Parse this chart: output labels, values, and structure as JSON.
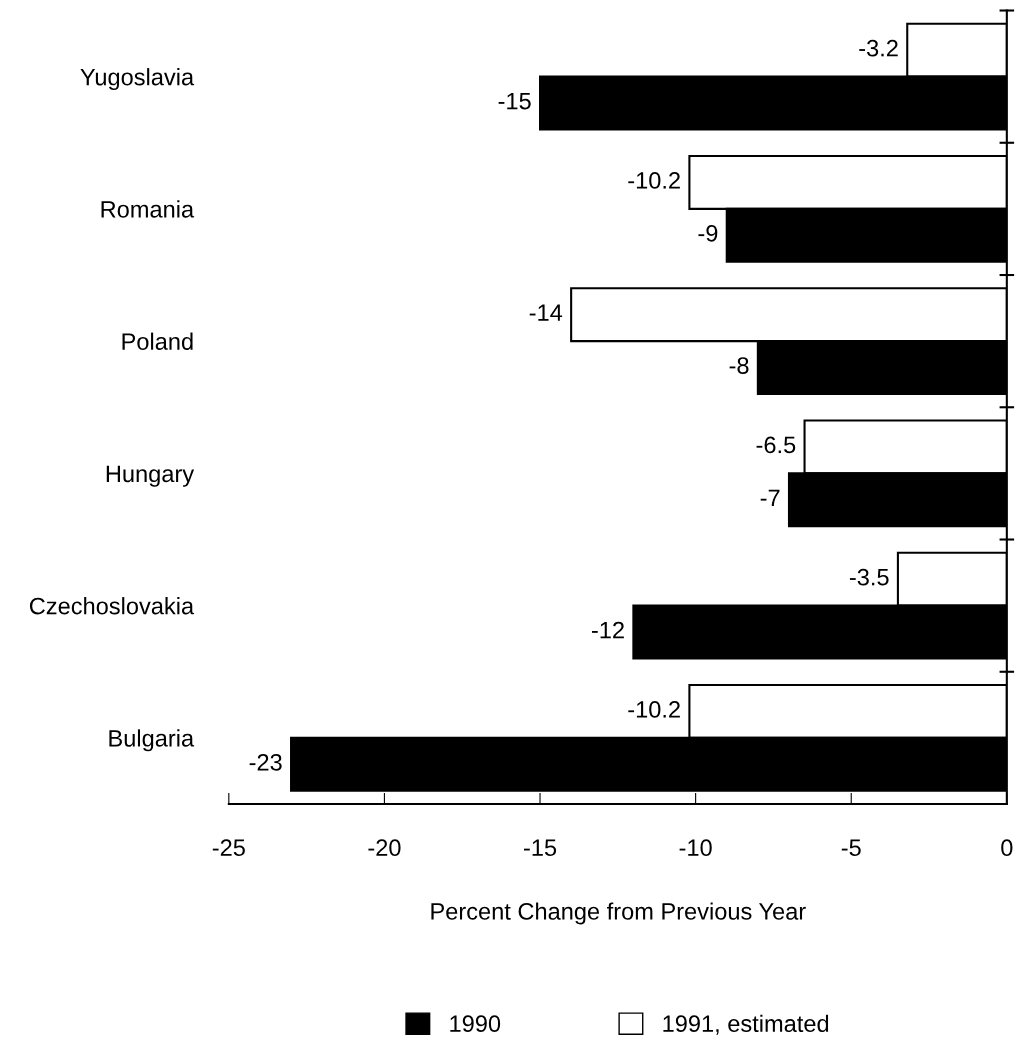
{
  "chart_data": {
    "type": "bar",
    "orientation": "horizontal",
    "xlabel": "Percent Change from Previous Year",
    "categories": [
      "Yugoslavia",
      "Romania",
      "Poland",
      "Hungary",
      "Czechoslovakia",
      "Bulgaria"
    ],
    "series": [
      {
        "name": "1991, estimated",
        "color": "#ffffff",
        "values": [
          -3.2,
          -10.2,
          -14,
          -6.5,
          -3.5,
          -10.2
        ]
      },
      {
        "name": "1990",
        "color": "#000000",
        "values": [
          -15,
          -9,
          -8,
          -7,
          -12,
          -23
        ]
      }
    ],
    "xlim": [
      -25,
      0
    ],
    "xticks": [
      -25,
      -20,
      -15,
      -10,
      -5,
      0
    ],
    "data_labels": true,
    "grid": false,
    "legend": "bottom"
  }
}
